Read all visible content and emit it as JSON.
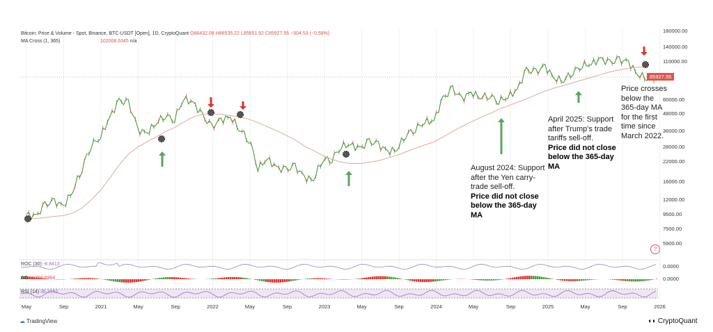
{
  "header": {
    "title": "Bitcoin: Price & Volume - Spot, Binance, BTC-USDT [Open], 1D, CryptoQuant",
    "open": "O86432.08",
    "high": "H86535.22",
    "low": "L85651.92",
    "close": "C85927.55",
    "change": "−504.53 (−0.58%)",
    "ma_label": "MA Cross (1, 365)",
    "ma_value": "102008.6345",
    "ma_na": "n/a"
  },
  "price_badge": "85927.55",
  "y_axis": [
    "180000.00",
    "140000.00",
    "110000.00",
    "60000.00",
    "48000.00",
    "36000.00",
    "28000.00",
    "22000.00",
    "16000.00",
    "12000.00",
    "9500.00",
    "7500.00",
    "5900.00"
  ],
  "x_axis": [
    "May",
    "Sep",
    "2021",
    "May",
    "Sep",
    "2022",
    "May",
    "Sep",
    "2023",
    "May",
    "Sep",
    "2024",
    "May",
    "Sep",
    "2025",
    "May",
    "Sep",
    "2026"
  ],
  "indicators": {
    "roc_label": "ROC (30)",
    "roc_value": "-8.8413",
    "roc_axis": "0.0000",
    "ao_label": "AO",
    "ao_value": "−1758.6964",
    "ao_axis": "0.0000",
    "rsi_label": "RSI (14)",
    "rsi_value": "36.2152"
  },
  "annotations": {
    "aug2024": {
      "text": "August 2024: Support after the Yen carry-trade sell-off.",
      "bold": "Price did not close below the 365-day MA"
    },
    "apr2025": {
      "text": "April 2025: Support after Trump's trade tariffs sell-off.",
      "bold": "Price did not close below the 365-day MA"
    },
    "cross": "Price crosses below the 365-day MA for the first time since March 2022."
  },
  "footer": {
    "left": "TradingView",
    "right": "CryptoQuant"
  },
  "help": "?",
  "chart_data": {
    "type": "line",
    "title": "Bitcoin: Price & Volume - Spot, Binance, BTC-USDT",
    "scale": "log",
    "ylim": [
      5000,
      190000
    ],
    "x_start": "2020-05",
    "x_step": "month",
    "series": [
      {
        "name": "BTC price",
        "color": "#4a9a3a",
        "values": [
          9500,
          9100,
          11000,
          11700,
          10800,
          13800,
          19700,
          29000,
          33000,
          45000,
          58800,
          57000,
          37000,
          35000,
          41500,
          47000,
          43800,
          61300,
          57000,
          46300,
          38500,
          43200,
          45500,
          37700,
          31800,
          19900,
          23300,
          20000,
          19400,
          20500,
          17200,
          16500,
          23100,
          23100,
          28500,
          29200,
          27200,
          30500,
          29200,
          26000,
          27000,
          34500,
          37700,
          42300,
          42600,
          61200,
          71300,
          60600,
          67500,
          62700,
          64600,
          58900,
          63300,
          70200,
          96400,
          93400,
          102400,
          84300,
          82500,
          94200,
          104600,
          107100,
          115700,
          108200,
          114000,
          109500,
          90000,
          85900
        ]
      },
      {
        "name": "MA 365",
        "color": "#e0a89c",
        "values": [
          8800,
          8900,
          9000,
          9200,
          9300,
          9700,
          10500,
          12000,
          14000,
          17000,
          21000,
          25000,
          28000,
          30500,
          33000,
          36000,
          38500,
          42000,
          45500,
          47500,
          48000,
          47500,
          46500,
          45500,
          44000,
          41500,
          39000,
          36500,
          34000,
          31500,
          28500,
          26500,
          24500,
          23000,
          22000,
          21500,
          21500,
          22000,
          22500,
          23500,
          24500,
          26000,
          27500,
          29000,
          30500,
          33000,
          36000,
          39000,
          42000,
          45000,
          48000,
          51500,
          54500,
          57500,
          61000,
          65000,
          69000,
          72500,
          75500,
          79000,
          82500,
          86000,
          90000,
          94000,
          97000,
          99500,
          101500,
          102000
        ]
      }
    ],
    "support_arrows": [
      "2021-07",
      "2023-03",
      "2024-08",
      "2025-04"
    ],
    "cross_below_arrows": [
      "2021-12",
      "2022-04",
      "2025-11"
    ]
  }
}
